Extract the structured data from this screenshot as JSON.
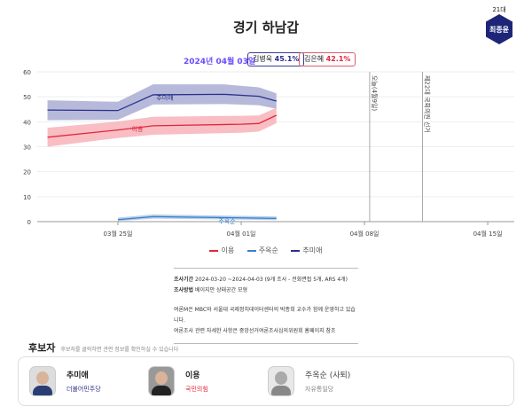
{
  "header": {
    "title": "경기 하남갑",
    "term": "21대",
    "incumbent": "최종윤",
    "date": "2024년 04월 03일",
    "badges": [
      {
        "name": "김병욱",
        "value": "45.1%"
      },
      {
        "name": "김은혜",
        "value": "42.1%"
      }
    ]
  },
  "chart_data": {
    "type": "line",
    "ylim": [
      0,
      60
    ],
    "yticks": [
      0,
      10,
      20,
      30,
      40,
      50,
      60
    ],
    "xticks": [
      "03월 25일",
      "04월 01일",
      "04월 08일",
      "04월 15일"
    ],
    "vlines": [
      {
        "date": "2024-04-09",
        "label": "오늘(4월9일)"
      },
      {
        "date": "2024-04-12",
        "label": "제22대 국회의원 선거"
      }
    ],
    "grid": true,
    "legend_position": "bottom",
    "series": [
      {
        "name": "추미애",
        "color": "#2a318a",
        "band_color": "#a9add3",
        "x": [
          "2024-03-21",
          "2024-03-25",
          "2024-03-27",
          "2024-03-31",
          "2024-04-02",
          "2024-04-03"
        ],
        "values": [
          44.7,
          44.5,
          50.8,
          51,
          50.2,
          48.3
        ],
        "lower": [
          40.6,
          40.8,
          46.9,
          47.1,
          46.6,
          45.2
        ],
        "upper": [
          48.6,
          48,
          55,
          55,
          53.8,
          51.4
        ]
      },
      {
        "name": "이용",
        "color": "#e0283c",
        "band_color": "#f7b3b9",
        "x": [
          "2024-03-21",
          "2024-03-25",
          "2024-03-27",
          "2024-04-01",
          "2024-04-02",
          "2024-04-03"
        ],
        "values": [
          33.8,
          36.7,
          38.4,
          39,
          39.3,
          42.6
        ],
        "lower": [
          30,
          33.5,
          34.8,
          35.6,
          36.1,
          39.4
        ],
        "upper": [
          37.6,
          40.1,
          42,
          42.4,
          42.5,
          45.6
        ]
      },
      {
        "name": "주옥순",
        "color": "#3b7fc7",
        "band_color": "#a9c7e8",
        "x": [
          "2024-03-25",
          "2024-03-27",
          "2024-04-01",
          "2024-04-03"
        ],
        "values": [
          0.8,
          2,
          1.5,
          1.3
        ],
        "lower": [
          0.2,
          1.2,
          0.8,
          0.6
        ],
        "upper": [
          1.6,
          2.9,
          2.3,
          2.1
        ]
      }
    ],
    "legend": [
      "이용",
      "주옥순",
      "추미애"
    ]
  },
  "info": {
    "period_label": "조사기간",
    "period": "2024-03-20 ~2024-04-03 (9개 조사 - 전화면접 5개, ARS 4개)",
    "method_label": "조사방법",
    "method": "베이지안 상태공간 모형",
    "note1": "여론M은 MBC와 서울대 국제정치데이터센터의 박종희 교수가 함께 운영하고 있습니다.",
    "note2": "여론조사 관련 자세한 사항은 중앙선거여론조사심의위원회 홈페이지 참조"
  },
  "candidates": {
    "title": "후보자",
    "hint": "후보자를 클릭하면 관련 정보를 확인하실 수 있습니다",
    "items": [
      {
        "name": "추미애",
        "party": "더불어민주당",
        "color": "#2a318a"
      },
      {
        "name": "이용",
        "party": "국민의힘",
        "color": "#e0283c"
      },
      {
        "name": "주옥순 (사퇴)",
        "party": "자유통일당",
        "color": "#888888"
      }
    ]
  }
}
